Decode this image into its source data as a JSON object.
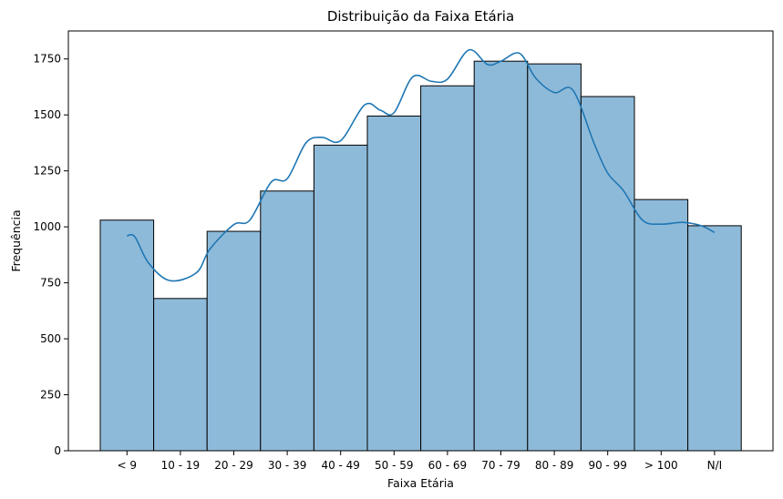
{
  "chart_data": {
    "type": "bar",
    "title": "Distribuição da Faixa Etária",
    "xlabel": "Faixa Etária",
    "ylabel": "Frequência",
    "categories": [
      "< 9",
      "10 - 19",
      "20 - 29",
      "30 - 39",
      "40 - 49",
      "50 - 59",
      "60 - 69",
      "70 - 79",
      "80 - 89",
      "90 - 99",
      "> 100",
      "N/I"
    ],
    "values": [
      1030,
      680,
      980,
      1160,
      1365,
      1495,
      1630,
      1740,
      1728,
      1582,
      1122,
      1005
    ],
    "yticks": [
      0,
      250,
      500,
      750,
      1000,
      1250,
      1500,
      1750
    ],
    "ylim": [
      0,
      1875
    ],
    "grid": false,
    "bar_color": "#8ebad9",
    "bar_edge_color": "#000000",
    "kde_color": "#1f77b4",
    "kde_curve": {
      "x": [
        0.0,
        0.15,
        0.4,
        0.8,
        1.3,
        1.55,
        2.0,
        2.3,
        2.7,
        3.0,
        3.35,
        3.65,
        4.0,
        4.45,
        4.75,
        5.0,
        5.35,
        5.7,
        6.0,
        6.4,
        6.75,
        7.0,
        7.35,
        7.65,
        8.0,
        8.35,
        8.75,
        9.0,
        9.3,
        9.65,
        10.0,
        10.4,
        10.75,
        11.0
      ],
      "y": [
        960,
        955,
        840,
        760,
        795,
        900,
        1010,
        1030,
        1200,
        1215,
        1375,
        1400,
        1385,
        1545,
        1520,
        1510,
        1670,
        1650,
        1660,
        1790,
        1725,
        1740,
        1775,
        1665,
        1600,
        1610,
        1370,
        1240,
        1160,
        1030,
        1012,
        1020,
        1005,
        975
      ]
    }
  }
}
